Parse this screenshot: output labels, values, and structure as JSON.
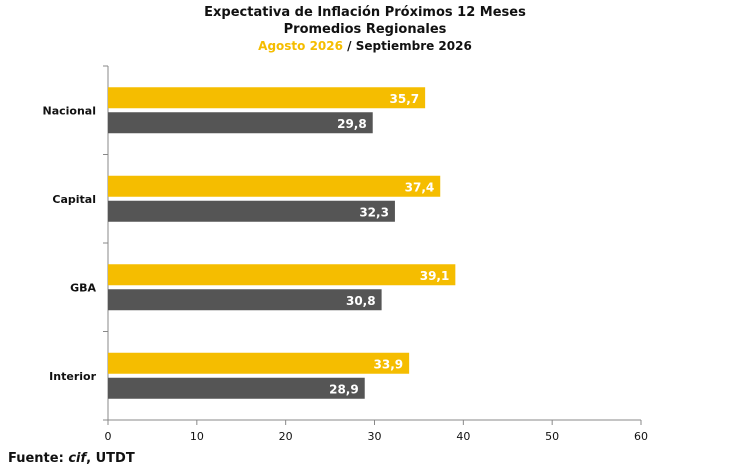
{
  "chart_data": {
    "type": "bar",
    "orientation": "horizontal",
    "title": "Expectativa de Inflación Próximos 12 Meses",
    "subtitle": "Promedios Regionales",
    "legend_line": {
      "series1_label": "Agosto 2026",
      "separator": " / ",
      "series2_label": "Septiembre 2026"
    },
    "categories": [
      "Nacional",
      "Capital",
      "GBA",
      "Interior"
    ],
    "series": [
      {
        "name": "Agosto 2026",
        "color": "#f5bd00",
        "values": [
          35.7,
          37.4,
          39.1,
          33.9
        ],
        "labels": [
          "35,7",
          "37,4",
          "39,1",
          "33,9"
        ]
      },
      {
        "name": "Septiembre 2026",
        "color": "#555555",
        "values": [
          29.8,
          32.3,
          30.8,
          28.9
        ],
        "labels": [
          "29,8",
          "32,3",
          "30,8",
          "28,9"
        ]
      }
    ],
    "xlim": [
      0,
      60
    ],
    "xticks": [
      0,
      10,
      20,
      30,
      40,
      50,
      60
    ],
    "grid": false
  },
  "source": {
    "prefix": "Fuente: ",
    "org": "cif",
    "suffix": ", UTDT"
  }
}
